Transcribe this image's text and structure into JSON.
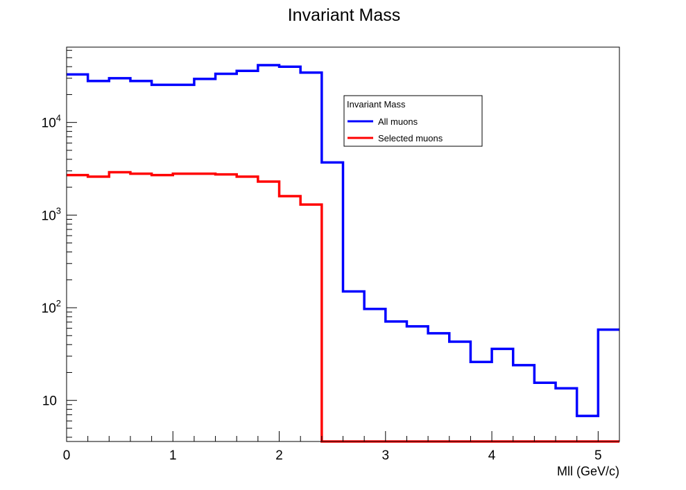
{
  "colors": {
    "all": "#0000ff",
    "selected": "#ff0000",
    "frame": "#000000"
  },
  "chart_data": {
    "type": "line",
    "title": "Invariant Mass",
    "xlabel": "Mll (GeV/c)",
    "ylabel": "",
    "xlim": [
      0,
      5.2
    ],
    "ylim": [
      3.6,
      65000
    ],
    "yscale": "log",
    "grid": false,
    "step": true,
    "x_ticks": [
      "0",
      "1",
      "2",
      "3",
      "4",
      "5"
    ],
    "y_ticks": [
      {
        "base": "10",
        "exp": ""
      },
      {
        "base": "10",
        "exp": "2"
      },
      {
        "base": "10",
        "exp": "3"
      },
      {
        "base": "10",
        "exp": "4"
      }
    ],
    "bin_edges": [
      0,
      0.2,
      0.4,
      0.6,
      0.8,
      1.0,
      1.2,
      1.4,
      1.6,
      1.8,
      2.0,
      2.2,
      2.4,
      2.6,
      2.8,
      3.0,
      3.2,
      3.4,
      3.6,
      3.8,
      4.0,
      4.2,
      4.4,
      4.6,
      4.8,
      5.0,
      5.2
    ],
    "series": [
      {
        "name": "All muons",
        "color": "#0000ff",
        "values": [
          33000,
          28000,
          30000,
          28000,
          25500,
          25500,
          29500,
          33500,
          36000,
          41500,
          40000,
          34500,
          3700,
          150,
          97,
          71,
          63,
          53,
          43,
          26,
          36,
          24,
          15.5,
          13.5,
          6.8,
          58
        ]
      },
      {
        "name": "Selected muons",
        "color": "#ff0000",
        "values": [
          2700,
          2600,
          2900,
          2800,
          2700,
          2800,
          2800,
          2750,
          2600,
          2300,
          1600,
          1300,
          0,
          0,
          0,
          0,
          0,
          0,
          0,
          0,
          0,
          0,
          0,
          0,
          0,
          0
        ]
      }
    ],
    "legend": {
      "title": "Invariant Mass",
      "placement": "upper-center-right",
      "entries": [
        "All muons",
        "Selected muons"
      ]
    }
  }
}
